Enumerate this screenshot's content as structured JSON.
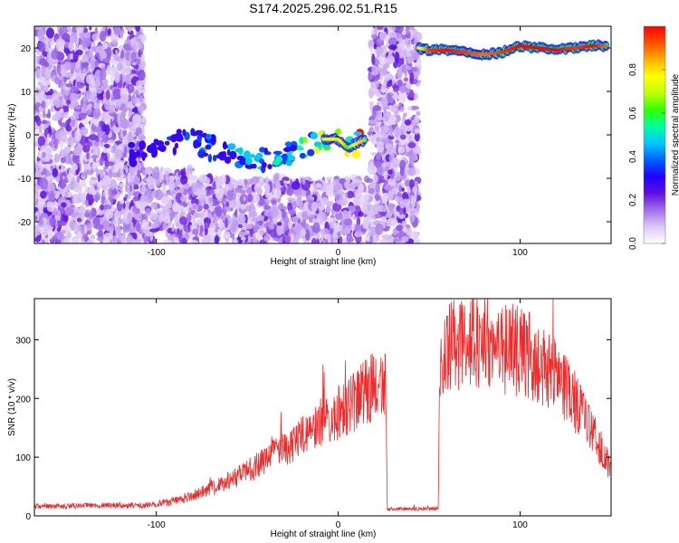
{
  "figure_title": "S174.2025.296.02.51.R15",
  "chart_data": [
    {
      "type": "heatmap",
      "title": "S174.2025.296.02.51.R15",
      "xlabel": "Height of straight line (km)",
      "ylabel": "Frequency (Hz)",
      "xlim": [
        -167,
        150
      ],
      "ylim": [
        -25,
        25
      ],
      "xticks": [
        -100,
        0,
        100
      ],
      "yticks": [
        -20,
        -10,
        0,
        10,
        20
      ],
      "colorbar": {
        "label": "Normalized spectral amplitude",
        "range": [
          0,
          1
        ],
        "ticks": [
          "0.0",
          "0.2",
          "0.4",
          "0.6",
          "0.8"
        ],
        "colormap": [
          "#ffffff",
          "#ddc8f5",
          "#a070e8",
          "#6010e0",
          "#2000ff",
          "#0060ff",
          "#00c8ff",
          "#00ffa0",
          "#30ff00",
          "#c0ff00",
          "#ffff00",
          "#ffb000",
          "#ff5000",
          "#ff0000"
        ]
      },
      "noise_regions": [
        {
          "x_from": -167,
          "x_to": -107,
          "f_from": -25,
          "f_to": 25
        },
        {
          "x_from": -107,
          "x_to": -80,
          "f_from": -25,
          "f_to": -8
        },
        {
          "x_from": -80,
          "x_to": 18,
          "f_from": -25,
          "f_to": -10
        },
        {
          "x_from": 18,
          "x_to": 44,
          "f_from": -25,
          "f_to": 25
        }
      ],
      "ridge": {
        "x": [
          -115,
          -100,
          -90,
          -80,
          -70,
          -60,
          -50,
          -40,
          -30,
          -20,
          -10,
          0,
          5,
          10,
          15,
          44,
          50,
          60,
          70,
          80,
          90,
          100,
          110,
          120,
          130,
          140,
          148
        ],
        "frequency": [
          -5,
          -3,
          -2,
          -1,
          -3,
          -4,
          -5,
          -6,
          -5,
          -3,
          -1,
          -1,
          -3,
          -2,
          -1,
          20,
          19.5,
          19.5,
          19,
          18.5,
          19,
          20.5,
          20,
          19.5,
          20,
          20.5,
          20.5
        ],
        "amplitude": [
          0.2,
          0.25,
          0.3,
          0.3,
          0.35,
          0.35,
          0.4,
          0.4,
          0.45,
          0.55,
          0.7,
          0.8,
          0.6,
          0.8,
          0.85,
          0.7,
          0.95,
          1,
          0.95,
          0.9,
          0.95,
          1,
          1,
          1,
          0.95,
          1,
          0.9
        ]
      }
    },
    {
      "type": "line",
      "xlabel": "Height of straight line (km)",
      "ylabel": "SNR (10 * v/v)",
      "xlim": [
        -167,
        150
      ],
      "ylim": [
        0,
        370
      ],
      "xticks": [
        -100,
        0,
        100
      ],
      "yticks": [
        0,
        100,
        200,
        300
      ],
      "series": [
        {
          "name": "SNR",
          "color": "#ee2a2a",
          "x": [
            -167,
            -150,
            -130,
            -110,
            -100,
            -90,
            -80,
            -70,
            -60,
            -50,
            -40,
            -30,
            -20,
            -10,
            0,
            10,
            20,
            26,
            27,
            40,
            55,
            56,
            60,
            70,
            80,
            90,
            100,
            110,
            120,
            130,
            140,
            150
          ],
          "y": [
            16,
            17,
            18,
            18,
            20,
            25,
            35,
            45,
            60,
            75,
            95,
            115,
            135,
            160,
            175,
            195,
            225,
            230,
            12,
            12,
            12,
            270,
            285,
            295,
            300,
            285,
            280,
            265,
            235,
            195,
            140,
            80
          ]
        }
      ]
    }
  ]
}
